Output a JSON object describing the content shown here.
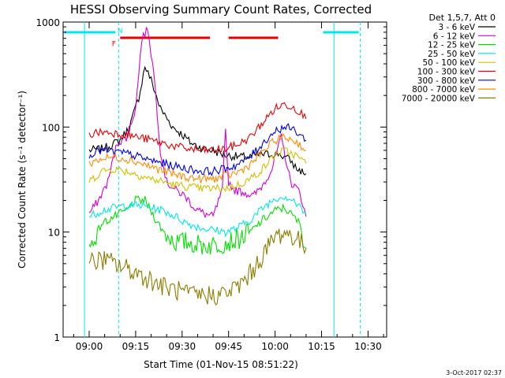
{
  "chart_data": {
    "type": "line",
    "title": "HESSI Observing Summary Count Rates, Corrected",
    "xlabel": "Start Time (01-Nov-15 08:51:22)",
    "ylabel": "Corrected Count Rate (s⁻¹ detector⁻¹)",
    "yscale": "log",
    "ylim": [
      1,
      1000
    ],
    "xlim_minutes_after_0900": [
      -8.4,
      96
    ],
    "xticks": [
      {
        "label": "09:00",
        "min": 0
      },
      {
        "label": "09:15",
        "min": 15
      },
      {
        "label": "09:30",
        "min": 30
      },
      {
        "label": "09:45",
        "min": 45
      },
      {
        "label": "10:00",
        "min": 60
      },
      {
        "label": "10:15",
        "min": 75
      },
      {
        "label": "10:30",
        "min": 90
      }
    ],
    "yticks": [
      {
        "label": "1",
        "value": 1
      },
      {
        "label": "10",
        "value": 10
      },
      {
        "label": "100",
        "value": 100
      },
      {
        "label": "1000",
        "value": 1000
      }
    ],
    "legend_header": "Det 1,5,7, Att 0",
    "legend_position": "right",
    "x_units": "minutes after 09:00",
    "series": [
      {
        "name": "3 - 6 keV",
        "color": "#000000",
        "points": [
          [
            0,
            60
          ],
          [
            4,
            62
          ],
          [
            6,
            65
          ],
          [
            10,
            75
          ],
          [
            13,
            100
          ],
          [
            16,
            190
          ],
          [
            18,
            380
          ],
          [
            20,
            280
          ],
          [
            23,
            150
          ],
          [
            27,
            100
          ],
          [
            30,
            85
          ],
          [
            33,
            70
          ],
          [
            37,
            62
          ],
          [
            40,
            60
          ],
          [
            43,
            55
          ],
          [
            46,
            53
          ],
          [
            49,
            52
          ],
          [
            52,
            52
          ],
          [
            55,
            55
          ],
          [
            58,
            55
          ],
          [
            61,
            56
          ],
          [
            63,
            52
          ],
          [
            65,
            48
          ],
          [
            67,
            40
          ],
          [
            70,
            36
          ]
        ]
      },
      {
        "name": "6 - 12 keV",
        "color": "#d400d4",
        "points": [
          [
            0,
            15
          ],
          [
            3,
            20
          ],
          [
            6,
            30
          ],
          [
            9,
            70
          ],
          [
            12,
            80
          ],
          [
            15,
            150
          ],
          [
            17,
            700
          ],
          [
            19,
            860
          ],
          [
            21,
            300
          ],
          [
            23,
            60
          ],
          [
            25,
            30
          ],
          [
            28,
            25
          ],
          [
            31,
            22
          ],
          [
            34,
            17
          ],
          [
            37,
            15
          ],
          [
            40,
            14
          ],
          [
            43,
            25
          ],
          [
            44,
            90
          ],
          [
            45,
            30
          ],
          [
            47,
            25
          ],
          [
            50,
            24
          ],
          [
            53,
            22
          ],
          [
            56,
            28
          ],
          [
            59,
            40
          ],
          [
            62,
            80
          ],
          [
            65,
            30
          ],
          [
            68,
            24
          ],
          [
            70,
            14
          ]
        ]
      },
      {
        "name": "12 - 25 keV",
        "color": "#00e000",
        "points": [
          [
            0,
            7
          ],
          [
            4,
            12
          ],
          [
            8,
            14
          ],
          [
            12,
            16
          ],
          [
            15,
            20
          ],
          [
            18,
            20
          ],
          [
            21,
            14
          ],
          [
            24,
            10
          ],
          [
            28,
            8
          ],
          [
            32,
            8
          ],
          [
            36,
            7.5
          ],
          [
            40,
            7.5
          ],
          [
            44,
            8
          ],
          [
            48,
            8.5
          ],
          [
            52,
            10
          ],
          [
            56,
            13
          ],
          [
            60,
            16
          ],
          [
            63,
            17
          ],
          [
            66,
            14
          ],
          [
            68,
            12
          ],
          [
            70,
            7
          ]
        ]
      },
      {
        "name": "25 - 50 keV",
        "color": "#00e8e8",
        "points": [
          [
            0,
            14
          ],
          [
            4,
            16
          ],
          [
            8,
            17
          ],
          [
            12,
            18
          ],
          [
            16,
            18
          ],
          [
            20,
            17
          ],
          [
            24,
            16
          ],
          [
            28,
            14
          ],
          [
            32,
            12
          ],
          [
            36,
            11
          ],
          [
            40,
            10.5
          ],
          [
            44,
            10
          ],
          [
            48,
            11
          ],
          [
            52,
            13
          ],
          [
            56,
            17
          ],
          [
            60,
            21
          ],
          [
            63,
            22
          ],
          [
            66,
            20
          ],
          [
            68,
            17
          ],
          [
            70,
            15
          ]
        ]
      },
      {
        "name": "50 - 100 keV",
        "color": "#d0c000",
        "points": [
          [
            0,
            30
          ],
          [
            4,
            38
          ],
          [
            8,
            40
          ],
          [
            12,
            38
          ],
          [
            16,
            35
          ],
          [
            20,
            32
          ],
          [
            24,
            30
          ],
          [
            28,
            28
          ],
          [
            32,
            27
          ],
          [
            36,
            26
          ],
          [
            40,
            26
          ],
          [
            44,
            26
          ],
          [
            48,
            28
          ],
          [
            52,
            32
          ],
          [
            56,
            40
          ],
          [
            60,
            55
          ],
          [
            63,
            60
          ],
          [
            66,
            55
          ],
          [
            68,
            50
          ],
          [
            70,
            45
          ]
        ]
      },
      {
        "name": "100 - 300 keV",
        "color": "#e80000",
        "points": [
          [
            0,
            85
          ],
          [
            4,
            90
          ],
          [
            8,
            88
          ],
          [
            12,
            85
          ],
          [
            16,
            80
          ],
          [
            20,
            75
          ],
          [
            24,
            70
          ],
          [
            28,
            65
          ],
          [
            32,
            62
          ],
          [
            36,
            60
          ],
          [
            40,
            60
          ],
          [
            44,
            62
          ],
          [
            48,
            68
          ],
          [
            52,
            80
          ],
          [
            56,
            110
          ],
          [
            60,
            150
          ],
          [
            63,
            165
          ],
          [
            66,
            155
          ],
          [
            68,
            140
          ],
          [
            70,
            120
          ]
        ]
      },
      {
        "name": "300 - 800 keV",
        "color": "#0000e8",
        "points": [
          [
            0,
            55
          ],
          [
            4,
            60
          ],
          [
            8,
            58
          ],
          [
            12,
            56
          ],
          [
            16,
            52
          ],
          [
            20,
            48
          ],
          [
            24,
            45
          ],
          [
            28,
            42
          ],
          [
            32,
            40
          ],
          [
            36,
            38
          ],
          [
            40,
            38
          ],
          [
            44,
            40
          ],
          [
            48,
            44
          ],
          [
            52,
            52
          ],
          [
            56,
            70
          ],
          [
            60,
            92
          ],
          [
            63,
            100
          ],
          [
            66,
            95
          ],
          [
            68,
            85
          ],
          [
            70,
            75
          ]
        ]
      },
      {
        "name": "800 - 7000 keV",
        "color": "#ff8c00",
        "points": [
          [
            0,
            45
          ],
          [
            4,
            50
          ],
          [
            8,
            52
          ],
          [
            12,
            50
          ],
          [
            16,
            46
          ],
          [
            20,
            42
          ],
          [
            24,
            38
          ],
          [
            28,
            35
          ],
          [
            32,
            33
          ],
          [
            36,
            32
          ],
          [
            40,
            32
          ],
          [
            44,
            34
          ],
          [
            48,
            37
          ],
          [
            52,
            44
          ],
          [
            56,
            58
          ],
          [
            60,
            75
          ],
          [
            63,
            80
          ],
          [
            66,
            75
          ],
          [
            68,
            68
          ],
          [
            70,
            60
          ]
        ]
      },
      {
        "name": "7000 - 20000 keV",
        "color": "#8b7d00",
        "points": [
          [
            0,
            5
          ],
          [
            4,
            5.5
          ],
          [
            8,
            5
          ],
          [
            12,
            4.5
          ],
          [
            16,
            4
          ],
          [
            20,
            3.5
          ],
          [
            24,
            3
          ],
          [
            28,
            2.8
          ],
          [
            32,
            2.5
          ],
          [
            36,
            2.5
          ],
          [
            40,
            2.5
          ],
          [
            44,
            2.6
          ],
          [
            48,
            3
          ],
          [
            52,
            4
          ],
          [
            56,
            6
          ],
          [
            60,
            9
          ],
          [
            63,
            10
          ],
          [
            66,
            9
          ],
          [
            68,
            8
          ],
          [
            70,
            7
          ]
        ]
      }
    ],
    "annotations": [
      {
        "text": "N",
        "color": "#00e8e8",
        "x_min": 10,
        "y": 1000
      },
      {
        "text": "F",
        "color": "#e80000",
        "x_min": 8,
        "y": 750
      }
    ],
    "night_intervals": [
      [
        -8,
        8.5
      ],
      [
        75.5,
        87
      ]
    ],
    "flare_intervals": [
      [
        10,
        39
      ],
      [
        45,
        61
      ]
    ],
    "night_boundaries_solid": [
      -1.5,
      79
    ],
    "night_boundaries_dashed": [
      9.5,
      87.5
    ]
  },
  "footer": {
    "timestamp": "3-Oct-2017 02:37"
  }
}
